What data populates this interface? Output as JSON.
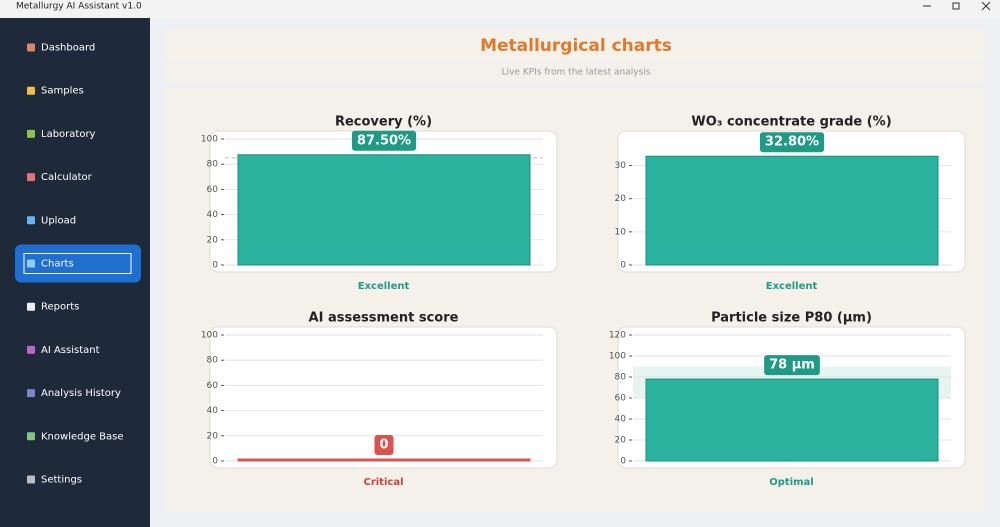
{
  "window": {
    "title": "Metallurgy AI Assistant v1.0"
  },
  "sidebar": {
    "items": [
      "Dashboard",
      "Samples",
      "Laboratory",
      "Calculator",
      "Upload",
      "Charts",
      "Reports",
      "AI Assistant",
      "Analysis History",
      "Knowledge Base",
      "Settings"
    ],
    "active_index": 5
  },
  "header": {
    "title": "Metallurgical charts",
    "subtitle": "Live KPIs from the latest analysis"
  },
  "chart_data": [
    {
      "type": "bar",
      "title": "Recovery (%)",
      "categories": [
        null
      ],
      "values": [
        87.5
      ],
      "value_labels": [
        "87.50%"
      ],
      "status": "Excellent",
      "status_color": "#1f9a85",
      "color": "#2bb3a0",
      "ylim": [
        0,
        100
      ],
      "yticks": [
        0,
        20,
        40,
        60,
        80,
        100
      ],
      "grid": true,
      "threshold": 85
    },
    {
      "type": "bar",
      "title": "WO₃ concentrate grade (%)",
      "categories": [
        null
      ],
      "values": [
        32.8
      ],
      "value_labels": [
        "32.80%"
      ],
      "status": "Excellent",
      "status_color": "#1f9a85",
      "color": "#2bb3a0",
      "ylim": [
        0,
        38
      ],
      "yticks": [
        0,
        10,
        20,
        30
      ],
      "grid": true
    },
    {
      "type": "bar",
      "title": "AI assessment score",
      "categories": [
        null
      ],
      "values": [
        0
      ],
      "value_labels": [
        "0"
      ],
      "status": "Critical",
      "status_color": "#c9453a",
      "color": "#d9534f",
      "ylim": [
        0,
        100
      ],
      "yticks": [
        0,
        20,
        40,
        60,
        80,
        100
      ],
      "grid": true
    },
    {
      "type": "bar",
      "title": "Particle size P80 (µm)",
      "categories": [
        null
      ],
      "values": [
        78
      ],
      "value_labels": [
        "78 µm"
      ],
      "status": "Optimal",
      "status_color": "#1f9a85",
      "color": "#2bb3a0",
      "ylim": [
        0,
        120
      ],
      "yticks": [
        0,
        20,
        40,
        60,
        80,
        100,
        120
      ],
      "grid": true,
      "optimal_range": [
        60,
        90
      ]
    }
  ]
}
